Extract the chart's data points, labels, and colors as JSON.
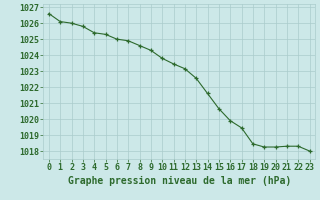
{
  "x": [
    0,
    1,
    2,
    3,
    4,
    5,
    6,
    7,
    8,
    9,
    10,
    11,
    12,
    13,
    14,
    15,
    16,
    17,
    18,
    19,
    20,
    21,
    22,
    23
  ],
  "y": [
    1026.6,
    1026.1,
    1026.0,
    1025.8,
    1025.4,
    1025.3,
    1025.0,
    1024.9,
    1024.6,
    1024.3,
    1023.8,
    1023.45,
    1023.15,
    1022.55,
    1021.6,
    1020.65,
    1019.9,
    1019.45,
    1018.45,
    1018.25,
    1018.25,
    1018.3,
    1018.3,
    1018.0
  ],
  "line_color": "#2d6a2d",
  "marker": "+",
  "marker_color": "#2d6a2d",
  "bg_color": "#cce8e8",
  "grid_color": "#aacccc",
  "xlabel": "Graphe pression niveau de la mer (hPa)",
  "ylim_min": 1017.5,
  "ylim_max": 1027.2,
  "xlim_min": -0.5,
  "xlim_max": 23.5,
  "yticks": [
    1018,
    1019,
    1020,
    1021,
    1022,
    1023,
    1024,
    1025,
    1026,
    1027
  ],
  "xticks": [
    0,
    1,
    2,
    3,
    4,
    5,
    6,
    7,
    8,
    9,
    10,
    11,
    12,
    13,
    14,
    15,
    16,
    17,
    18,
    19,
    20,
    21,
    22,
    23
  ],
  "tick_color": "#2d6a2d",
  "label_color": "#2d6a2d",
  "xlabel_fontsize": 7.0,
  "tick_fontsize": 6.0
}
